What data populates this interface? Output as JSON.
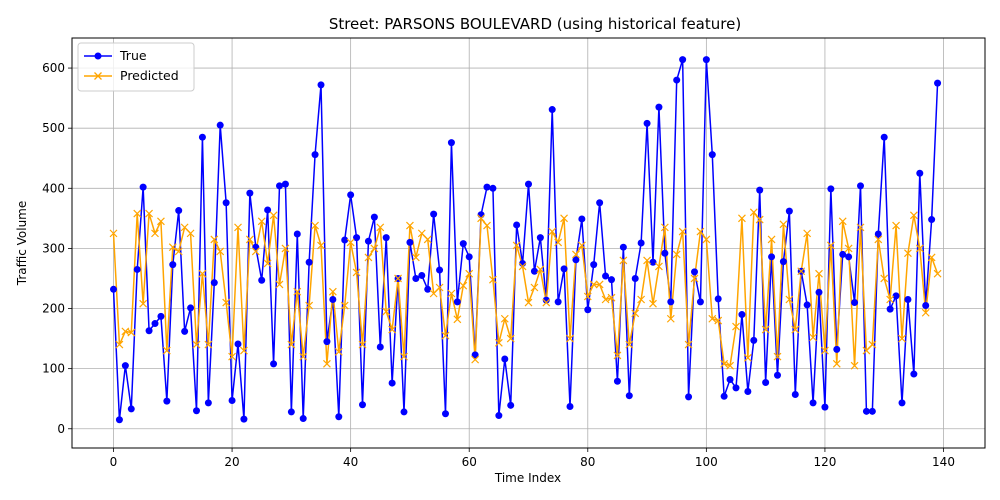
{
  "chart_data": {
    "type": "line",
    "title": "Street: PARSONS BOULEVARD (using historical feature)",
    "xlabel": "Time Index",
    "ylabel": "Traffic Volume",
    "xlim": [
      -7,
      147
    ],
    "ylim": [
      -32,
      650
    ],
    "xticks": [
      0,
      20,
      40,
      60,
      80,
      100,
      120,
      140
    ],
    "yticks": [
      0,
      100,
      200,
      300,
      400,
      500,
      600
    ],
    "grid": true,
    "legend_position": "top-left",
    "series": [
      {
        "name": "True",
        "color": "#0000ff",
        "marker": "circle",
        "values": [
          232,
          15,
          105,
          33,
          265,
          402,
          163,
          175,
          187,
          46,
          273,
          363,
          162,
          201,
          30,
          485,
          43,
          243,
          505,
          376,
          47,
          141,
          16,
          392,
          302,
          247,
          364,
          108,
          404,
          407,
          28,
          324,
          17,
          277,
          456,
          572,
          145,
          215,
          20,
          314,
          389,
          318,
          40,
          312,
          352,
          136,
          318,
          76,
          250,
          28,
          310,
          250,
          255,
          232,
          357,
          264,
          25,
          476,
          211,
          308,
          286,
          123,
          356,
          402,
          400,
          22,
          116,
          39,
          339,
          275,
          407,
          262,
          318,
          214,
          531,
          211,
          266,
          37,
          281,
          349,
          198,
          273,
          376,
          254,
          248,
          79,
          302,
          55,
          250,
          309,
          508,
          277,
          535,
          292,
          211,
          580,
          614,
          53,
          261,
          211,
          614,
          456,
          216,
          54,
          82,
          68,
          190,
          62,
          147,
          397,
          77,
          286,
          89,
          278,
          362,
          57,
          262,
          206,
          43,
          227,
          36,
          399,
          132,
          290,
          286,
          210,
          404,
          29,
          29,
          324,
          485,
          199,
          221,
          43,
          215,
          91,
          425,
          205,
          348,
          575
        ]
      },
      {
        "name": "Predicted",
        "color": "#ffa500",
        "marker": "x",
        "values": [
          325,
          140,
          162,
          160,
          358,
          208,
          358,
          325,
          345,
          130,
          302,
          295,
          335,
          325,
          140,
          258,
          140,
          315,
          295,
          210,
          120,
          335,
          130,
          315,
          295,
          345,
          275,
          355,
          240,
          300,
          140,
          228,
          120,
          205,
          338,
          305,
          108,
          228,
          128,
          205,
          310,
          260,
          140,
          285,
          300,
          335,
          195,
          165,
          250,
          120,
          338,
          285,
          325,
          315,
          225,
          235,
          155,
          225,
          182,
          238,
          258,
          115,
          350,
          338,
          248,
          143,
          183,
          150,
          305,
          270,
          210,
          235,
          265,
          210,
          328,
          310,
          350,
          150,
          290,
          305,
          220,
          240,
          240,
          215,
          218,
          122,
          280,
          140,
          192,
          215,
          280,
          208,
          270,
          335,
          183,
          290,
          328,
          140,
          250,
          328,
          315,
          183,
          180,
          108,
          105,
          170,
          350,
          118,
          360,
          348,
          165,
          315,
          120,
          340,
          215,
          165,
          262,
          325,
          152,
          258,
          130,
          305,
          108,
          345,
          300,
          105,
          335,
          130,
          140,
          315,
          250,
          215,
          338,
          150,
          292,
          355,
          300,
          193,
          285,
          258
        ]
      }
    ]
  }
}
